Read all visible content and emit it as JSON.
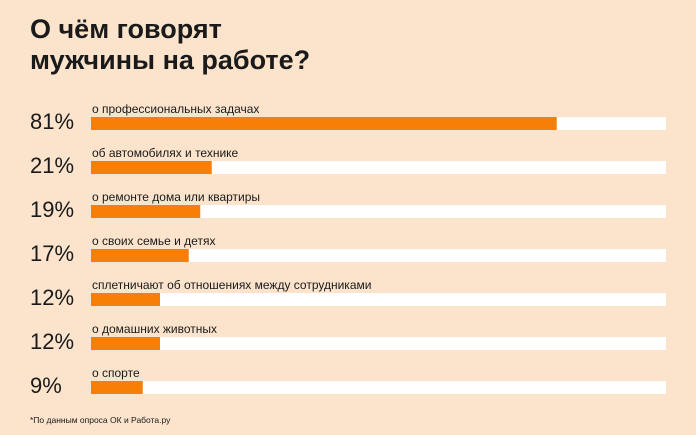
{
  "colors": {
    "background": "#fbe3cc",
    "bar_fill": "#f77f08",
    "track": "#ffffff",
    "text": "#1a1a1a"
  },
  "title": {
    "line1": "О чём говорят",
    "line2": "мужчины на работе?"
  },
  "footnote": "*По данным опроса ОК и Работа.ру",
  "chart_data": {
    "type": "bar",
    "orientation": "horizontal",
    "title": "О чём говорят мужчины на работе?",
    "xlim": [
      0,
      100
    ],
    "grid": false,
    "categories": [
      "о профессиональных задачах",
      "об автомобилях и технике",
      "о ремонте дома или квартиры",
      "о своих семье и детях",
      "сплетничают об отношениях между сотрудниками",
      "о домашних животных",
      "о спорте"
    ],
    "values": [
      81,
      21,
      19,
      17,
      12,
      12,
      9
    ],
    "value_labels": [
      "81%",
      "21%",
      "19%",
      "17%",
      "12%",
      "12%",
      "9%"
    ]
  }
}
